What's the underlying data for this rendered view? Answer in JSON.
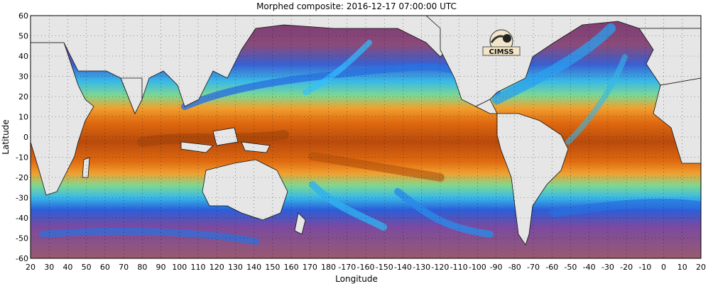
{
  "title": "Morphed composite: 2016-12-17 07:00:00 UTC",
  "xaxis": {
    "label": "Longitude",
    "ticks": [
      "20",
      "30",
      "40",
      "50",
      "60",
      "70",
      "80",
      "90",
      "100",
      "110",
      "120",
      "130",
      "140",
      "150",
      "160",
      "170",
      "180",
      "-170",
      "-160",
      "-150",
      "-140",
      "-130",
      "-120",
      "-110",
      "-100",
      "-90",
      "-80",
      "-70",
      "-60",
      "-50",
      "-40",
      "-30",
      "-20",
      "-10",
      "0",
      "10",
      "20"
    ]
  },
  "yaxis": {
    "label": "Latitude",
    "ticks": [
      "60",
      "50",
      "40",
      "30",
      "20",
      "10",
      "0",
      "-10",
      "-20",
      "-30",
      "-40",
      "-50",
      "-60"
    ]
  },
  "logo_text": "CIMSS",
  "colors": {
    "land": "#e6e6e6",
    "ocean_dry": "#8a4a7a",
    "ocean_moist": "#2a6fe0",
    "tropics": "#e06a10",
    "deep": "#8a3a08"
  }
}
